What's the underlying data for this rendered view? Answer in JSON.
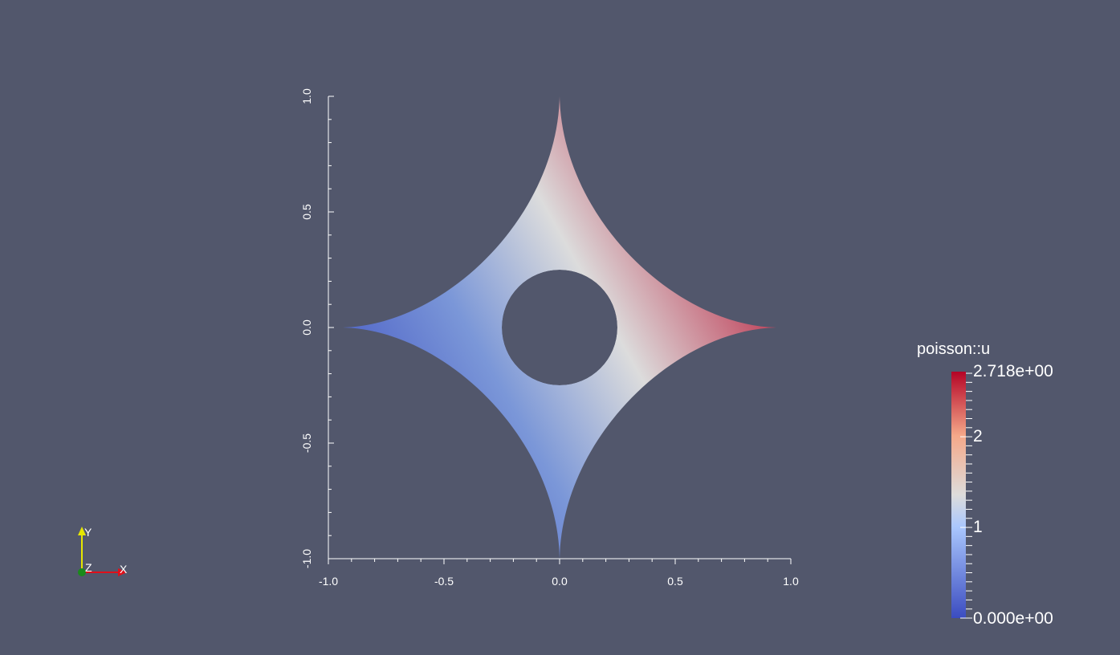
{
  "colors": {
    "background": "#52576c",
    "colormap_low": "#3b4cc0",
    "colormap_mid": "#dddcdb",
    "colormap_high": "#b40426",
    "axis_x": "#e0101a",
    "axis_y": "#e6e600",
    "axis_z": "#1a8a1a"
  },
  "plot": {
    "x_ticks": [
      "-1.0",
      "-0.5",
      "0.0",
      "0.5",
      "1.0"
    ],
    "y_ticks": [
      "-1.0",
      "-0.5",
      "0.0",
      "0.5",
      "1.0"
    ]
  },
  "colorbar": {
    "title": "poisson::u",
    "max_label": "2.718e+00",
    "min_label": "0.000e+00",
    "mid_labels": [
      "2",
      "1"
    ]
  },
  "orientation": {
    "x_label": "X",
    "y_label": "Y",
    "z_label": "Z"
  },
  "chart_data": {
    "type": "heatmap",
    "field": "poisson::u",
    "domain": "astroid-shaped region with circular hole at origin",
    "hole_radius": 0.25,
    "x_range": [
      -1.0,
      1.0
    ],
    "y_range": [
      -1.0,
      1.0
    ],
    "value_range": [
      0.0,
      2.718
    ],
    "colorbar_ticks": [
      0,
      1,
      2
    ]
  }
}
